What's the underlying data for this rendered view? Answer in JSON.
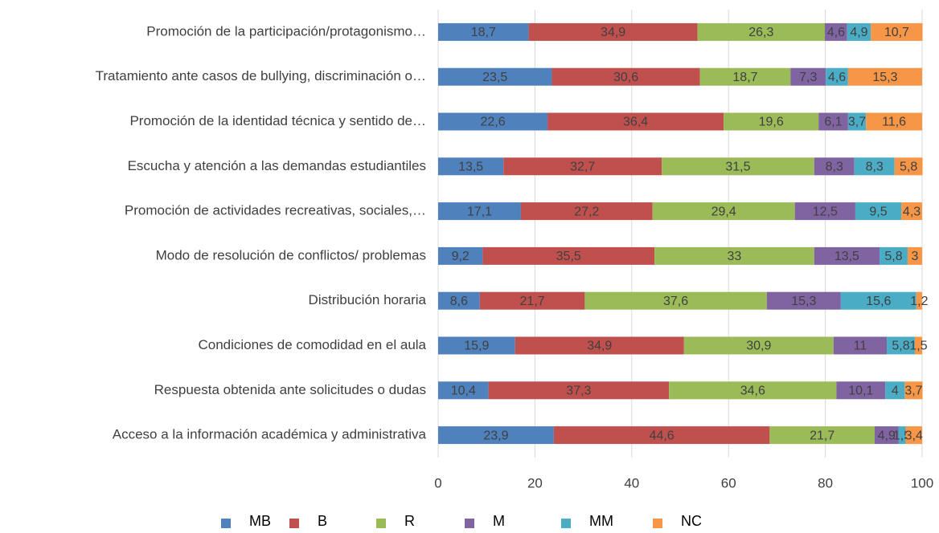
{
  "chart_data": {
    "type": "stacked-bar-horizontal",
    "categories": [
      "Promoción de  la participación/protagonismo…",
      "Tratamiento ante casos de bullying, discriminación o…",
      "Promoción de la identidad técnica y sentido de…",
      "Escucha y atención a las demandas estudiantiles",
      "Promoción de actividades recreativas, sociales,…",
      "Modo de resolución de conflictos/ problemas",
      "Distribución horaria",
      "Condiciones de comodidad en el aula",
      "Respuesta obtenida ante solicitudes o dudas",
      "Acceso a la información académica y administrativa"
    ],
    "series": [
      {
        "name": "MB",
        "color": "#4f81bd",
        "values": [
          18.7,
          23.5,
          22.6,
          13.5,
          17.1,
          9.2,
          8.6,
          15.9,
          10.4,
          23.9
        ],
        "value_labels": [
          "18,7",
          "23,5",
          "22,6",
          "13,5",
          "17,1",
          "9,2",
          "8,6",
          "15,9",
          "10,4",
          "23,9"
        ]
      },
      {
        "name": "B",
        "color": "#c0504d",
        "values": [
          34.9,
          30.6,
          36.4,
          32.7,
          27.2,
          35.5,
          21.7,
          34.9,
          37.3,
          44.6
        ],
        "value_labels": [
          "34,9",
          "30,6",
          "36,4",
          "32,7",
          "27,2",
          "35,5",
          "21,7",
          "34,9",
          "37,3",
          "44,6"
        ]
      },
      {
        "name": "R",
        "color": "#9bbb59",
        "values": [
          26.3,
          18.7,
          19.6,
          31.5,
          29.4,
          33,
          37.6,
          30.9,
          34.6,
          21.7
        ],
        "value_labels": [
          "26,3",
          "18,7",
          "19,6",
          "31,5",
          "29,4",
          "33",
          "37,6",
          "30,9",
          "34,6",
          "21,7"
        ]
      },
      {
        "name": "M",
        "color": "#8064a2",
        "values": [
          4.6,
          7.3,
          6.1,
          8.3,
          12.5,
          13.5,
          15.3,
          11,
          10.1,
          4.9
        ],
        "value_labels": [
          "4,6",
          "7,3",
          "6,1",
          "8,3",
          "12,5",
          "13,5",
          "15,3",
          "11",
          "10,1",
          "4,9"
        ]
      },
      {
        "name": "MM",
        "color": "#4bacc6",
        "values": [
          4.9,
          4.6,
          3.7,
          8.3,
          9.5,
          5.8,
          15.6,
          5.8,
          4,
          1.5
        ],
        "value_labels": [
          "4,9",
          "4,6",
          "3,7",
          "8,3",
          "9,5",
          "5,8",
          "15,6",
          "5,8",
          "4",
          "1,5"
        ]
      },
      {
        "name": "NC",
        "color": "#f79646",
        "values": [
          10.7,
          15.3,
          11.6,
          5.8,
          4.3,
          3,
          1.2,
          1.5,
          3.7,
          3.4
        ],
        "value_labels": [
          "10,7",
          "15,3",
          "11,6",
          "5,8",
          "4,3",
          "3",
          "1,2",
          "1,5",
          "3,7",
          "3,4"
        ]
      }
    ],
    "xlim": [
      0,
      100
    ],
    "xticks": [
      0,
      20,
      40,
      60,
      80,
      100
    ],
    "grid": true,
    "legend": "bottom"
  }
}
